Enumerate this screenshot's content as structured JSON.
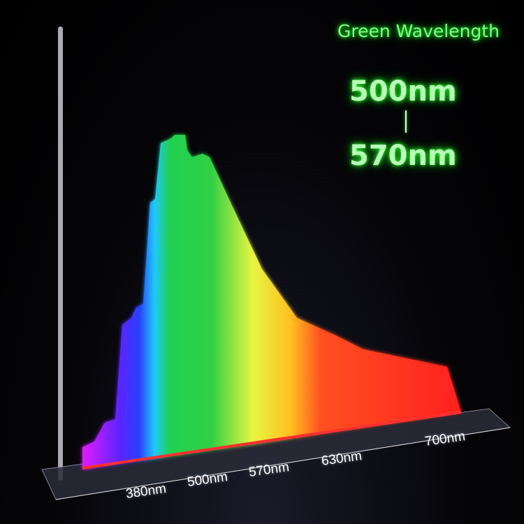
{
  "chart_data": {
    "type": "area",
    "title": "Green Wavelength",
    "annotation": {
      "from": "500nm",
      "to": "570nm"
    },
    "tick_labels": [
      "380nm",
      "500nm",
      "570nm",
      "630nm",
      "700nm"
    ],
    "x": [
      380,
      500,
      570,
      630,
      700
    ],
    "relative_intensity_approx": [
      0.05,
      1.0,
      0.6,
      0.3,
      0.15
    ],
    "fill": "visible spectrum gradient",
    "colors": {
      "violet": "#cc22ff",
      "blue": "#3a2cff",
      "cyan": "#1ec8ff",
      "green": "#20d050",
      "yellow": "#f2f53a",
      "orange": "#ff8c1a",
      "red": "#ff2a20",
      "label_glow": "#33ff33"
    }
  }
}
